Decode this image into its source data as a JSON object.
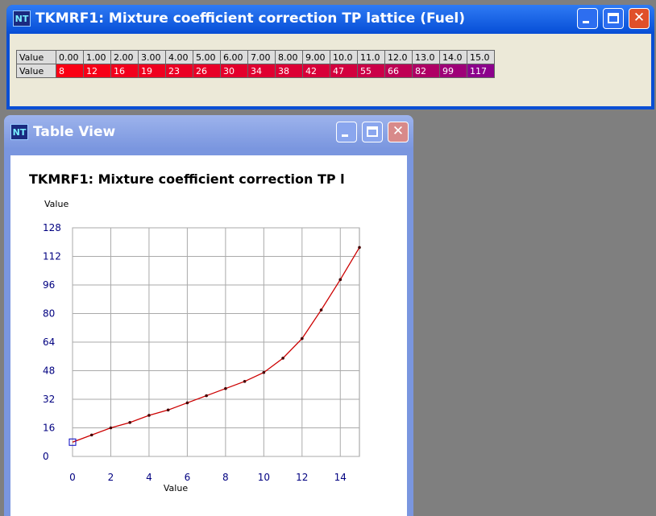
{
  "table_window": {
    "title": "TKMRF1: Mixture coefficient correction TP lattice (Fuel)",
    "header_label": "Value",
    "columns": [
      "0.00",
      "1.00",
      "2.00",
      "3.00",
      "4.00",
      "5.00",
      "6.00",
      "7.00",
      "8.00",
      "9.00",
      "10.0",
      "11.0",
      "12.0",
      "13.0",
      "14.0",
      "15.0"
    ],
    "row_label": "Value",
    "values": [
      8,
      12,
      16,
      19,
      23,
      26,
      30,
      34,
      38,
      42,
      47,
      55,
      66,
      82,
      99,
      117
    ]
  },
  "chart_window": {
    "title": "Table View"
  },
  "chart_data": {
    "type": "line",
    "title": "TKMRF1: Mixture coefficient correction TP l",
    "x_label": "Value",
    "y_label": "Value",
    "color": "#cc0000",
    "x": [
      0,
      1,
      2,
      3,
      4,
      5,
      6,
      7,
      8,
      9,
      10,
      11,
      12,
      13,
      14,
      15
    ],
    "values": [
      8,
      12,
      16,
      19,
      23,
      26,
      30,
      34,
      38,
      42,
      47,
      55,
      66,
      82,
      99,
      117
    ],
    "xlim": [
      0,
      15
    ],
    "xticks": [
      0,
      2,
      4,
      6,
      8,
      10,
      12,
      14
    ],
    "ylim": [
      0,
      128
    ],
    "yticks": [
      0,
      16,
      32,
      48,
      64,
      80,
      96,
      112,
      128
    ],
    "grid": true
  }
}
